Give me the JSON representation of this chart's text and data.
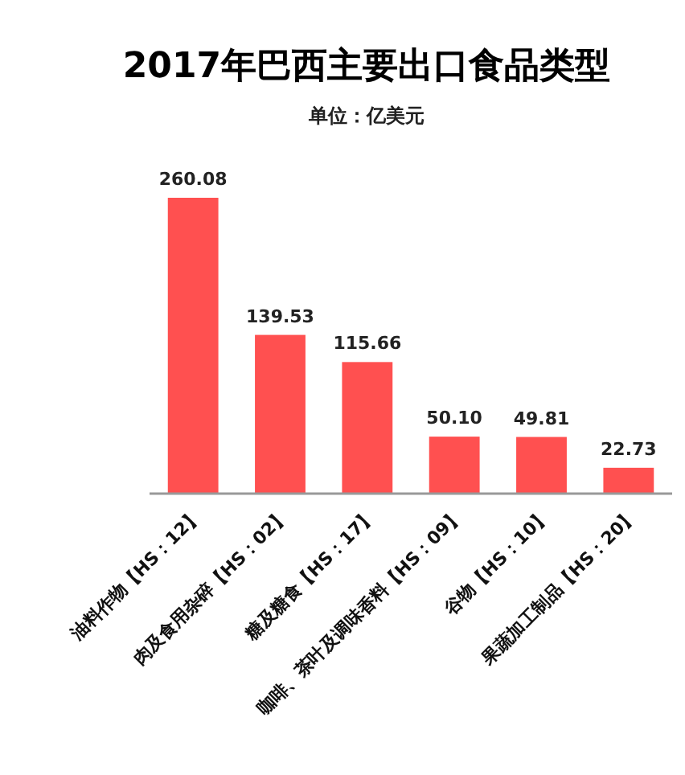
{
  "chart_data": {
    "type": "bar",
    "title": "2017年巴西主要出口食品类型",
    "subtitle": "单位：亿美元",
    "categories": [
      "油料作物【HS：12】",
      "肉及食用杂碎【HS：02】",
      "糖及糖食【HS：17】",
      "咖啡、茶叶及调味香料【HS：09】",
      "谷物【HS：10】",
      "果蔬加工制品【HS：20】"
    ],
    "values": [
      260.08,
      139.53,
      115.66,
      50.1,
      49.81,
      22.73
    ],
    "value_labels": [
      "260.08",
      "139.53",
      "115.66",
      "50.10",
      "49.81",
      "22.73"
    ],
    "color": "#ff5050"
  }
}
